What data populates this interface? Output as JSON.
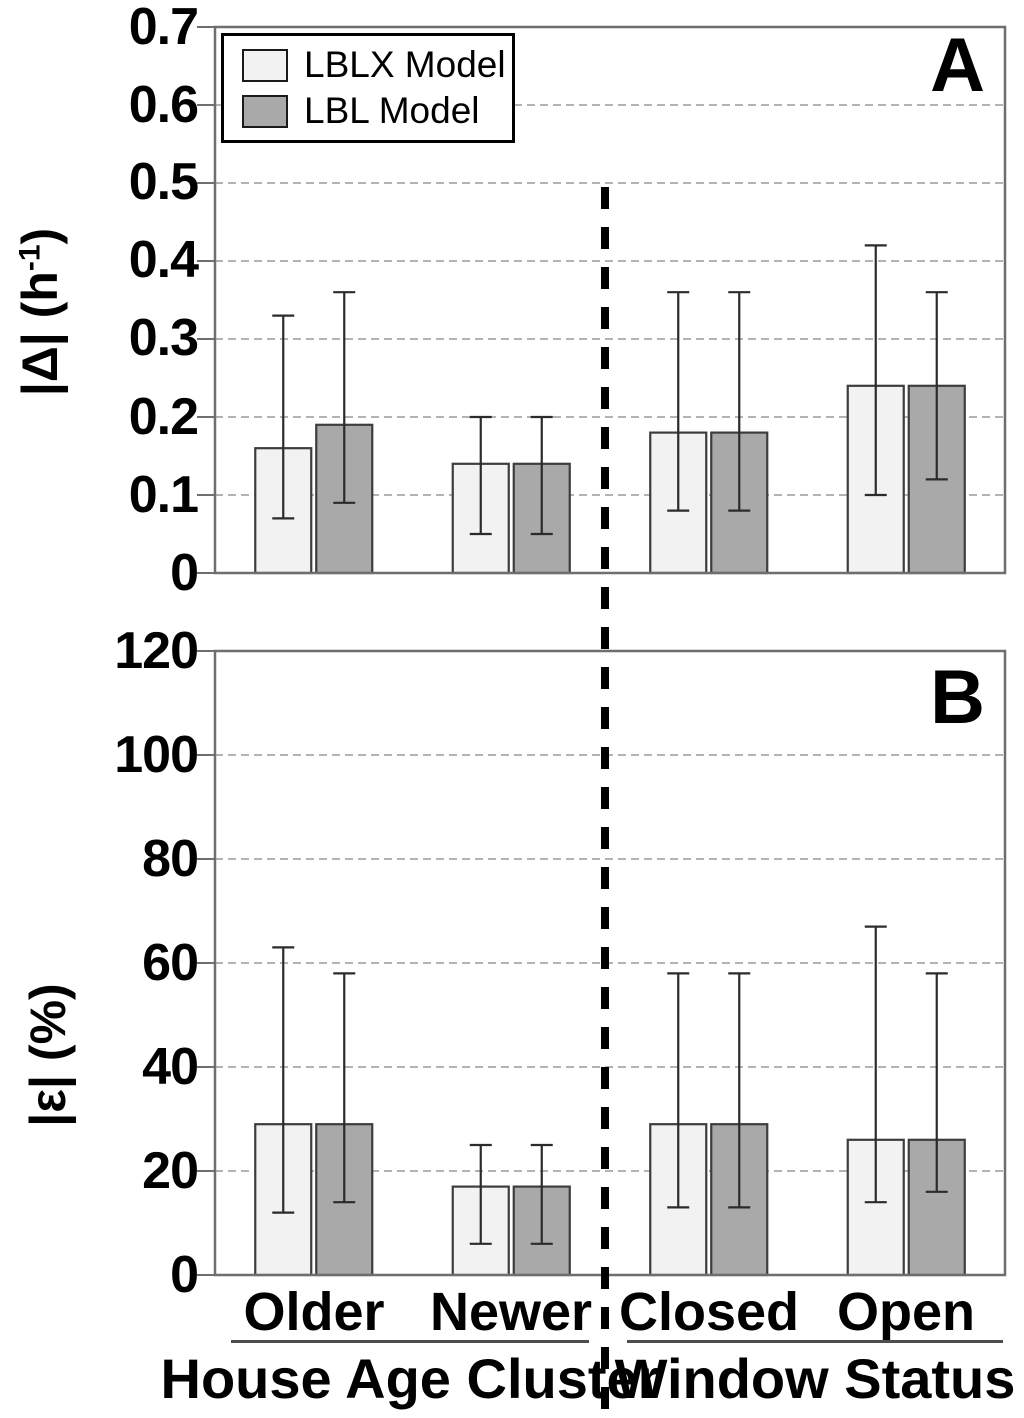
{
  "figure": {
    "background": "#ffffff",
    "legend": {
      "position": "top-left",
      "items": [
        {
          "label": "LBLX Model",
          "color": "#f2f2f2"
        },
        {
          "label": "LBL Model",
          "color": "#a9a9a9"
        }
      ]
    },
    "colors": {
      "bar_light": "#f2f2f2",
      "bar_dark": "#a9a9a9",
      "bar_border": "#3d3d3d",
      "grid": "#b3b3b3",
      "axis": "#6e6e6e",
      "error_bar": "#2b2b2b",
      "divider": "#000000"
    }
  },
  "chart_data": [
    {
      "type": "bar",
      "panel_label": "A",
      "ylabel": "|Δ| (h⁻¹)",
      "ylabel_base": "|Δ| (h",
      "ylabel_sup": "-1",
      "ylabel_end": ")",
      "ylim": [
        0,
        0.7
      ],
      "ytick_labels": [
        "0.7",
        "0.6",
        "0.5",
        "0.4",
        "0.3",
        "0.2",
        "0.1",
        "0"
      ],
      "ytick_values": [
        0.7,
        0.6,
        0.5,
        0.4,
        0.3,
        0.2,
        0.1,
        0
      ],
      "grid": "horizontal-dashed",
      "categories": [
        "Older",
        "Newer",
        "Closed",
        "Open"
      ],
      "series": [
        {
          "name": "LBLX Model",
          "color": "#f2f2f2",
          "values": [
            0.16,
            0.14,
            0.18,
            0.24
          ],
          "err_lo": [
            0.07,
            0.05,
            0.08,
            0.1
          ],
          "err_hi": [
            0.33,
            0.2,
            0.36,
            0.42
          ]
        },
        {
          "name": "LBL Model",
          "color": "#a9a9a9",
          "values": [
            0.19,
            0.14,
            0.18,
            0.24
          ],
          "err_lo": [
            0.09,
            0.05,
            0.08,
            0.12
          ],
          "err_hi": [
            0.36,
            0.2,
            0.36,
            0.36
          ]
        }
      ]
    },
    {
      "type": "bar",
      "panel_label": "B",
      "ylabel": "|ε| (%)",
      "ylabel_base": "|ε| (%)",
      "ylabel_sup": "",
      "ylabel_end": "",
      "ylim": [
        0,
        120
      ],
      "ytick_labels": [
        "120",
        "100",
        "80",
        "60",
        "40",
        "20",
        "0"
      ],
      "ytick_values": [
        120,
        100,
        80,
        60,
        40,
        20,
        0
      ],
      "grid": "horizontal-dashed",
      "categories": [
        "Older",
        "Newer",
        "Closed",
        "Open"
      ],
      "series": [
        {
          "name": "LBLX Model",
          "color": "#f2f2f2",
          "values": [
            29,
            17,
            29,
            26
          ],
          "err_lo": [
            12,
            6,
            13,
            14
          ],
          "err_hi": [
            63,
            25,
            58,
            67
          ]
        },
        {
          "name": "LBL Model",
          "color": "#a9a9a9",
          "values": [
            29,
            17,
            29,
            26
          ],
          "err_lo": [
            14,
            6,
            13,
            16
          ],
          "err_hi": [
            58,
            25,
            58,
            58
          ]
        }
      ]
    }
  ],
  "x_axis": {
    "divider_style": "dashed-vertical",
    "category_groups": [
      {
        "label": "House Age Cluster",
        "categories": [
          "Older",
          "Newer"
        ]
      },
      {
        "label": "Window Status",
        "categories": [
          "Closed",
          "Open"
        ]
      }
    ]
  }
}
